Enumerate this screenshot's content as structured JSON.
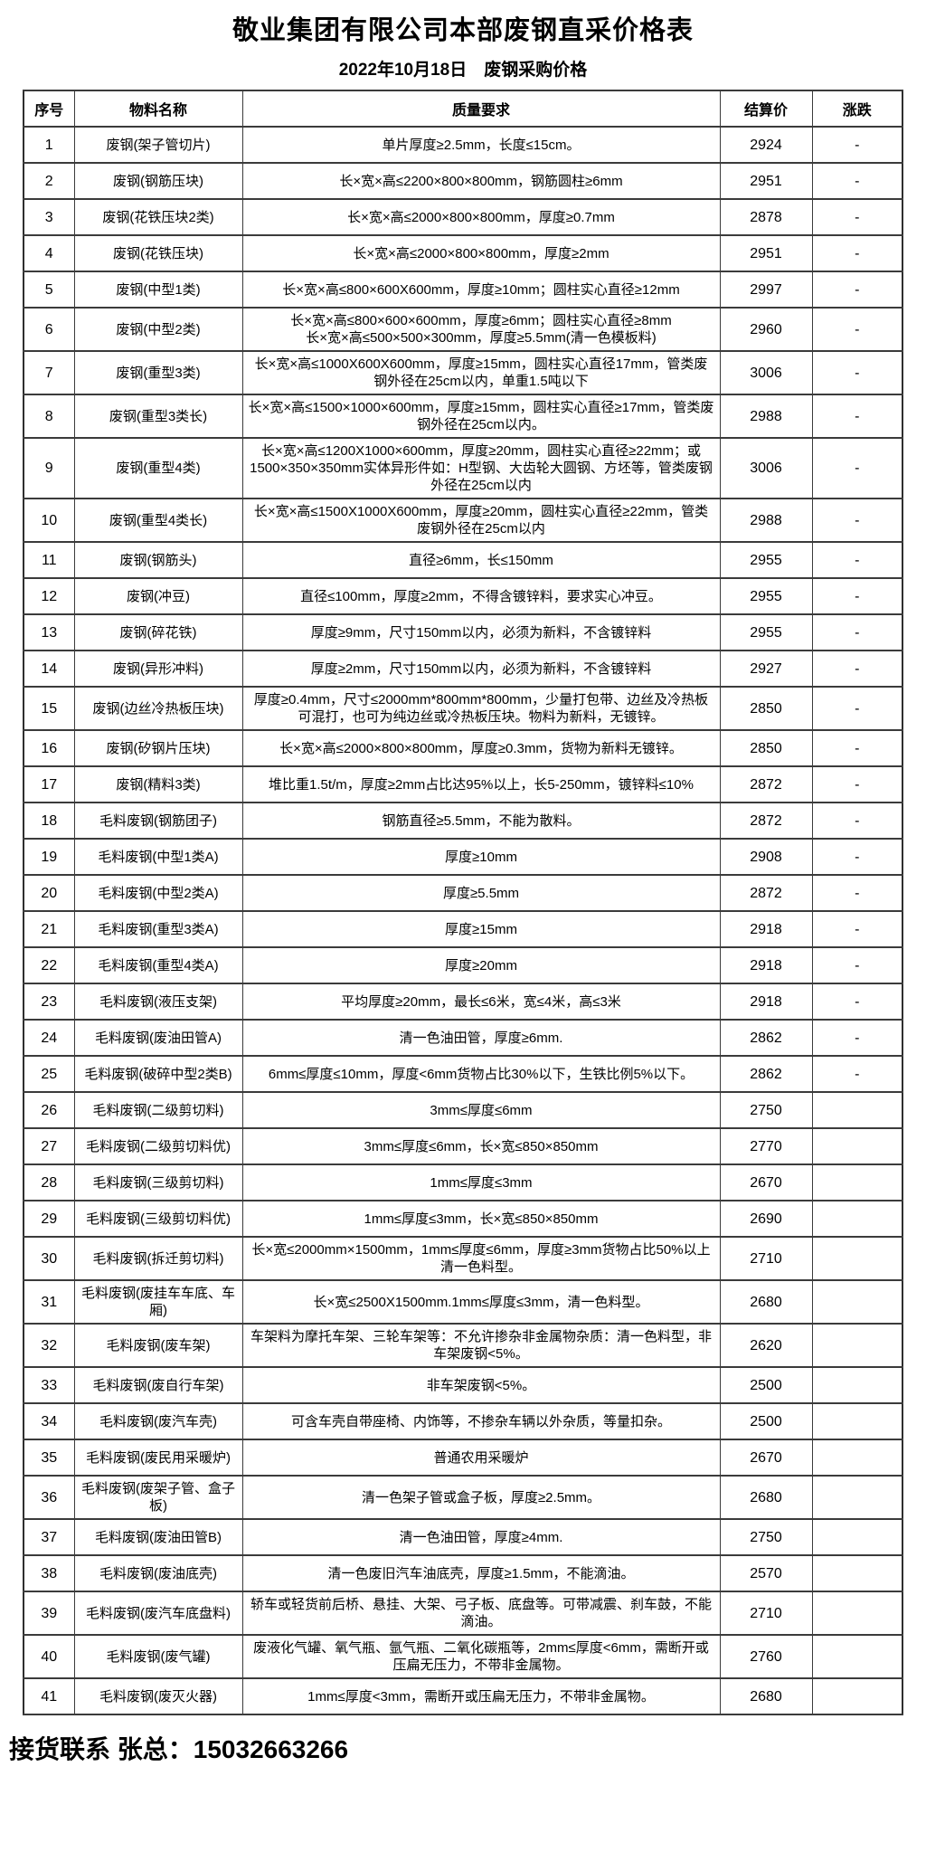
{
  "page": {
    "title": "敬业集团有限公司本部废钢直采价格表",
    "subtitle": "2022年10月18日　废钢采购价格",
    "footer": "接货联系 张总：15032663266"
  },
  "table": {
    "columns": [
      "序号",
      "物料名称",
      "质量要求",
      "结算价",
      "涨跌"
    ],
    "rows": [
      {
        "no": "1",
        "name": "废钢(架子管切片)",
        "req": "单片厚度≥2.5mm，长度≤15cm。",
        "price": "2924",
        "change": "-"
      },
      {
        "no": "2",
        "name": "废钢(钢筋压块)",
        "req": "长×宽×高≤2200×800×800mm，钢筋圆柱≥6mm",
        "price": "2951",
        "change": "-"
      },
      {
        "no": "3",
        "name": "废钢(花铁压块2类)",
        "req": "长×宽×高≤2000×800×800mm，厚度≥0.7mm",
        "price": "2878",
        "change": "-"
      },
      {
        "no": "4",
        "name": "废钢(花铁压块)",
        "req": "长×宽×高≤2000×800×800mm，厚度≥2mm",
        "price": "2951",
        "change": "-"
      },
      {
        "no": "5",
        "name": "废钢(中型1类)",
        "req": "长×宽×高≤800×600X600mm，厚度≥10mm；圆柱实心直径≥12mm",
        "price": "2997",
        "change": "-"
      },
      {
        "no": "6",
        "name": "废钢(中型2类)",
        "req": "长×宽×高≤800×600×600mm，厚度≥6mm；圆柱实心直径≥8mm\n长×宽×高≤500×500×300mm，厚度≥5.5mm(清一色模板料)",
        "price": "2960",
        "change": "-"
      },
      {
        "no": "7",
        "name": "废钢(重型3类)",
        "req": "长×宽×高≤1000X600X600mm，厚度≥15mm，圆柱实心直径17mm，管类废钢外径在25cm以内，单重1.5吨以下",
        "price": "3006",
        "change": "-"
      },
      {
        "no": "8",
        "name": "废钢(重型3类长)",
        "req": "长×宽×高≤1500×1000×600mm，厚度≥15mm，圆柱实心直径≥17mm，管类废钢外径在25cm以内。",
        "price": "2988",
        "change": "-"
      },
      {
        "no": "9",
        "name": "废钢(重型4类)",
        "req": "长×宽×高≤1200X1000×600mm，厚度≥20mm，圆柱实心直径≥22mm；或1500×350×350mm实体异形件如：H型钢、大齿轮大圆钢、方坯等，管类废钢外径在25cm以内",
        "price": "3006",
        "change": "-"
      },
      {
        "no": "10",
        "name": "废钢(重型4类长)",
        "req": "长×宽×高≤1500X1000X600mm，厚度≥20mm，圆柱实心直径≥22mm，管类废钢外径在25cm以内",
        "price": "2988",
        "change": "-"
      },
      {
        "no": "11",
        "name": "废钢(钢筋头)",
        "req": "直径≥6mm，长≤150mm",
        "price": "2955",
        "change": "-"
      },
      {
        "no": "12",
        "name": "废钢(冲豆)",
        "req": "直径≤100mm，厚度≥2mm，不得含镀锌料，要求实心冲豆。",
        "price": "2955",
        "change": "-"
      },
      {
        "no": "13",
        "name": "废钢(碎花铁)",
        "req": "厚度≥9mm，尺寸150mm以内，必须为新料，不含镀锌料",
        "price": "2955",
        "change": "-"
      },
      {
        "no": "14",
        "name": "废钢(异形冲料)",
        "req": "厚度≥2mm，尺寸150mm以内，必须为新料，不含镀锌料",
        "price": "2927",
        "change": "-"
      },
      {
        "no": "15",
        "name": "废钢(边丝冷热板压块)",
        "req": "厚度≥0.4mm，尺寸≤2000mm*800mm*800mm，少量打包带、边丝及冷热板可混打，也可为纯边丝或冷热板压块。物料为新料，无镀锌。",
        "price": "2850",
        "change": "-"
      },
      {
        "no": "16",
        "name": "废钢(矽钢片压块)",
        "req": "长×宽×高≤2000×800×800mm，厚度≥0.3mm，货物为新料无镀锌。",
        "price": "2850",
        "change": "-"
      },
      {
        "no": "17",
        "name": "废钢(精料3类)",
        "req": "堆比重1.5t/m，厚度≥2mm占比达95%以上，长5-250mm，镀锌料≤10%",
        "price": "2872",
        "change": "-"
      },
      {
        "no": "18",
        "name": "毛料废钢(钢筋团子)",
        "req": "钢筋直径≥5.5mm，不能为散料。",
        "price": "2872",
        "change": "-"
      },
      {
        "no": "19",
        "name": "毛料废钢(中型1类A)",
        "req": "厚度≥10mm",
        "price": "2908",
        "change": "-"
      },
      {
        "no": "20",
        "name": "毛料废钢(中型2类A)",
        "req": "厚度≥5.5mm",
        "price": "2872",
        "change": "-"
      },
      {
        "no": "21",
        "name": "毛料废钢(重型3类A)",
        "req": "厚度≥15mm",
        "price": "2918",
        "change": "-"
      },
      {
        "no": "22",
        "name": "毛料废钢(重型4类A)",
        "req": "厚度≥20mm",
        "price": "2918",
        "change": "-"
      },
      {
        "no": "23",
        "name": "毛料废钢(液压支架)",
        "req": "平均厚度≥20mm，最长≤6米，宽≤4米，高≤3米",
        "price": "2918",
        "change": "-"
      },
      {
        "no": "24",
        "name": "毛料废钢(废油田管A)",
        "req": "清一色油田管，厚度≥6mm.",
        "price": "2862",
        "change": "-"
      },
      {
        "no": "25",
        "name": "毛料废钢(破碎中型2类B)",
        "req": "6mm≤厚度≤10mm，厚度<6mm货物占比30%以下，生铁比例5%以下。",
        "price": "2862",
        "change": "-"
      },
      {
        "no": "26",
        "name": "毛料废钢(二级剪切料)",
        "req": "3mm≤厚度≤6mm",
        "price": "2750",
        "change": ""
      },
      {
        "no": "27",
        "name": "毛料废钢(二级剪切料优)",
        "req": "3mm≤厚度≤6mm，长×宽≤850×850mm",
        "price": "2770",
        "change": ""
      },
      {
        "no": "28",
        "name": "毛料废钢(三级剪切料)",
        "req": "1mm≤厚度≤3mm",
        "price": "2670",
        "change": ""
      },
      {
        "no": "29",
        "name": "毛料废钢(三级剪切料优)",
        "req": "1mm≤厚度≤3mm，长×宽≤850×850mm",
        "price": "2690",
        "change": ""
      },
      {
        "no": "30",
        "name": "毛料废钢(拆迁剪切料)",
        "req": "长×宽≤2000mm×1500mm，1mm≤厚度≤6mm，厚度≥3mm货物占比50%以上清一色料型。",
        "price": "2710",
        "change": ""
      },
      {
        "no": "31",
        "name": "毛料废钢(废挂车车底、车厢)",
        "req": "长×宽≤2500X1500mm.1mm≤厚度≤3mm，清一色料型。",
        "price": "2680",
        "change": ""
      },
      {
        "no": "32",
        "name": "毛料废钢(废车架)",
        "req": "车架料为摩托车架、三轮车架等：不允许掺杂非金属物杂质：清一色料型，非车架废钢<5%。",
        "price": "2620",
        "change": ""
      },
      {
        "no": "33",
        "name": "毛料废钢(废自行车架)",
        "req": "非车架废钢<5%。",
        "price": "2500",
        "change": ""
      },
      {
        "no": "34",
        "name": "毛料废钢(废汽车壳)",
        "req": "可含车壳自带座椅、内饰等，不掺杂车辆以外杂质，等量扣杂。",
        "price": "2500",
        "change": ""
      },
      {
        "no": "35",
        "name": "毛料废钢(废民用采暖炉)",
        "req": "普通农用采暖炉",
        "price": "2670",
        "change": ""
      },
      {
        "no": "36",
        "name": "毛料废钢(废架子管、盒子板)",
        "req": "清一色架子管或盒子板，厚度≥2.5mm。",
        "price": "2680",
        "change": ""
      },
      {
        "no": "37",
        "name": "毛料废钢(废油田管B)",
        "req": "清一色油田管，厚度≥4mm.",
        "price": "2750",
        "change": ""
      },
      {
        "no": "38",
        "name": "毛料废钢(废油底壳)",
        "req": "清一色废旧汽车油底壳，厚度≥1.5mm，不能滴油。",
        "price": "2570",
        "change": ""
      },
      {
        "no": "39",
        "name": "毛料废钢(废汽车底盘料)",
        "req": "轿车或轻货前后桥、悬挂、大架、弓子板、底盘等。可带减震、刹车鼓，不能滴油。",
        "price": "2710",
        "change": ""
      },
      {
        "no": "40",
        "name": "毛料废钢(废气罐)",
        "req": "废液化气罐、氧气瓶、氩气瓶、二氧化碳瓶等，2mm≤厚度<6mm，需断开或压扁无压力，不带非金属物。",
        "price": "2760",
        "change": ""
      },
      {
        "no": "41",
        "name": "毛料废钢(废灭火器)",
        "req": "1mm≤厚度<3mm，需断开或压扁无压力，不带非金属物。",
        "price": "2680",
        "change": ""
      }
    ]
  }
}
